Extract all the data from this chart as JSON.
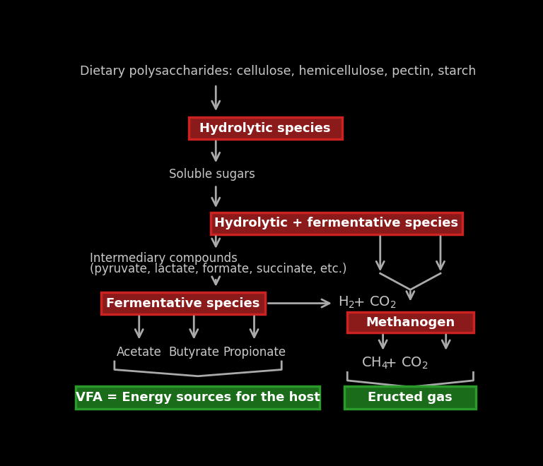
{
  "bg_color": "#000000",
  "text_color": "#c8c8c8",
  "red_box_color": "#8b1a1a",
  "red_box_edge": "#cc2222",
  "green_box_color": "#1a6b1a",
  "green_box_edge": "#2a9b2a",
  "arrow_color": "#aaaaaa",
  "title_text": "Dietary polysaccharides: cellulose, hemicellulose, pectin, starch",
  "box1_text": "Hydrolytic species",
  "label1_text": "Soluble sugars",
  "box2_text": "Hydrolytic + fermentative species",
  "label2_line1": "Intermediary compounds",
  "label2_line2": "(pyruvate, lactate, formate, succinate, etc.)",
  "box3_text": "Fermentative species",
  "label3a": "Acetate",
  "label3b": "Butyrate",
  "label3c": "Propionate",
  "box4_text": "Methanogen",
  "green1_text": "VFA = Energy sources for the host",
  "green2_text": "Eructed gas",
  "font_size_title": 12.5,
  "font_size_box": 13,
  "font_size_label": 12,
  "font_size_green": 13,
  "font_size_chem": 14
}
